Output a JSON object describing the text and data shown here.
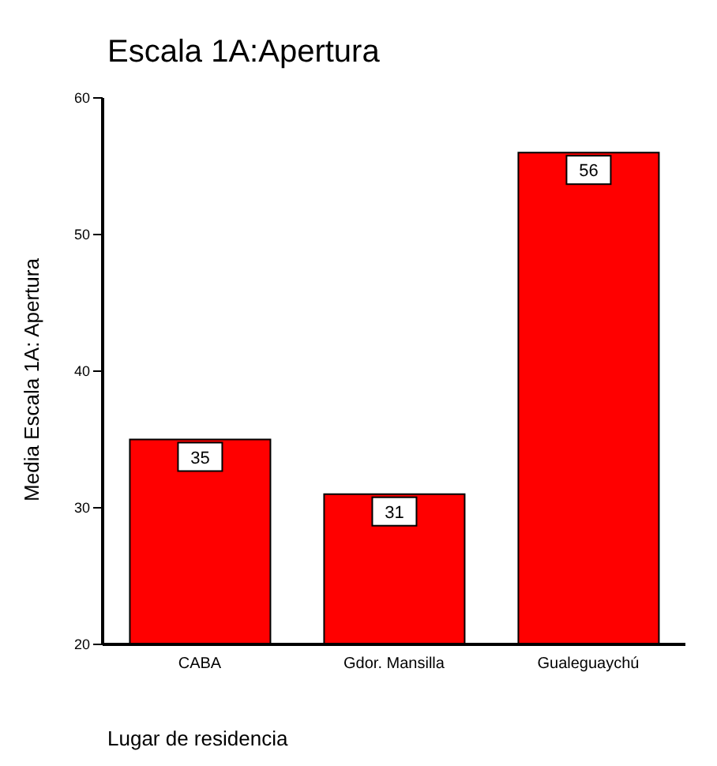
{
  "chart_data": {
    "type": "bar",
    "title": "Escala 1A:Apertura",
    "xlabel": "Lugar de residencia",
    "ylabel": "Media Escala 1A: Apertura",
    "categories": [
      "CABA",
      "Gdor. Mansilla",
      "Gualeguaychú"
    ],
    "values": [
      35,
      31,
      56
    ],
    "color": "#ff0000",
    "ylim": [
      20,
      60
    ],
    "yticks": [
      20,
      30,
      40,
      50,
      60
    ],
    "data_labels": true,
    "grid": false
  }
}
